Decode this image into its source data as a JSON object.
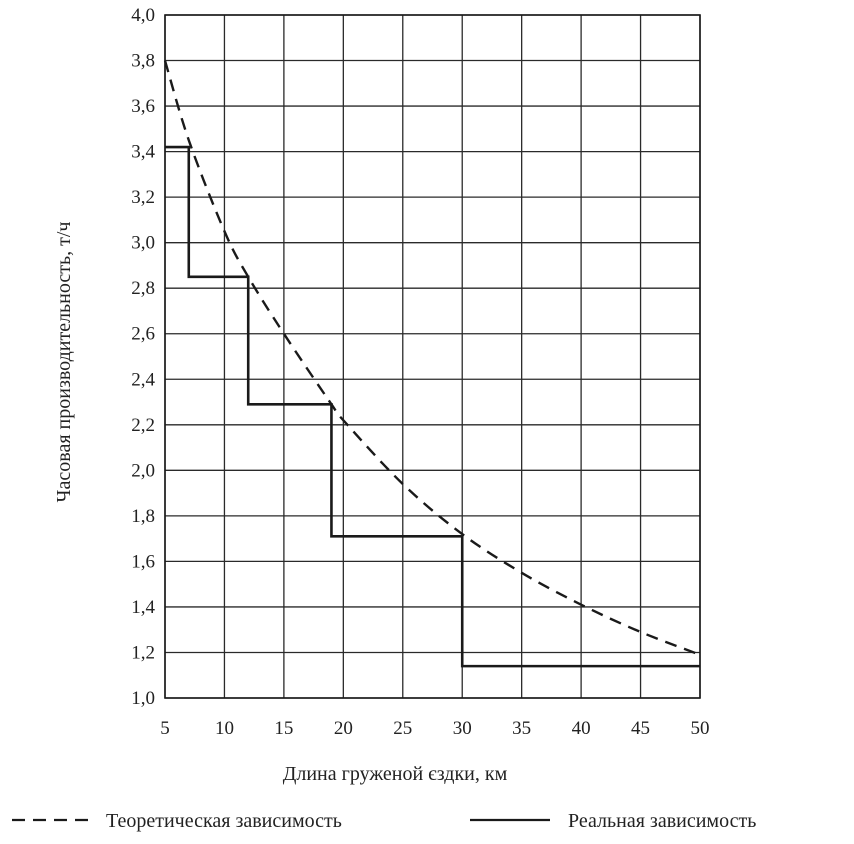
{
  "chart_data": {
    "type": "line",
    "xlabel": "Длина груженой єздки, км",
    "ylabel": "Часовая производительность, т/ч",
    "xlim": [
      5,
      50
    ],
    "ylim": [
      1.0,
      4.0
    ],
    "x_ticks": [
      "5",
      "10",
      "15",
      "20",
      "25",
      "30",
      "35",
      "40",
      "45",
      "50"
    ],
    "x_tick_values": [
      5,
      10,
      15,
      20,
      25,
      30,
      35,
      40,
      45,
      50
    ],
    "y_ticks": [
      "1,0",
      "1,2",
      "1,4",
      "1,6",
      "1,8",
      "2,0",
      "2,2",
      "2,4",
      "2,6",
      "2,8",
      "3,0",
      "3,2",
      "3,4",
      "3,6",
      "3,8",
      "4,0"
    ],
    "y_tick_values": [
      1.0,
      1.2,
      1.4,
      1.6,
      1.8,
      2.0,
      2.2,
      2.4,
      2.6,
      2.8,
      3.0,
      3.2,
      3.4,
      3.6,
      3.8,
      4.0
    ],
    "grid": true,
    "legend_position": "bottom",
    "series": [
      {
        "name": "Теоретическая зависимость",
        "style": "dashed",
        "color": "#1a1a1a",
        "x": [
          5,
          7,
          10,
          12,
          15,
          19,
          20,
          25,
          30,
          35,
          40,
          45,
          50
        ],
        "y": [
          3.8,
          3.45,
          3.05,
          2.85,
          2.6,
          2.29,
          2.22,
          1.94,
          1.72,
          1.55,
          1.41,
          1.29,
          1.19
        ]
      },
      {
        "name": "Реальная зависимость",
        "style": "solid",
        "color": "#1a1a1a",
        "x": [
          5,
          7,
          7,
          12,
          12,
          19,
          19,
          30,
          30,
          50
        ],
        "y": [
          3.42,
          3.42,
          2.85,
          2.85,
          2.29,
          2.29,
          1.71,
          1.71,
          1.14,
          1.14
        ]
      }
    ]
  }
}
